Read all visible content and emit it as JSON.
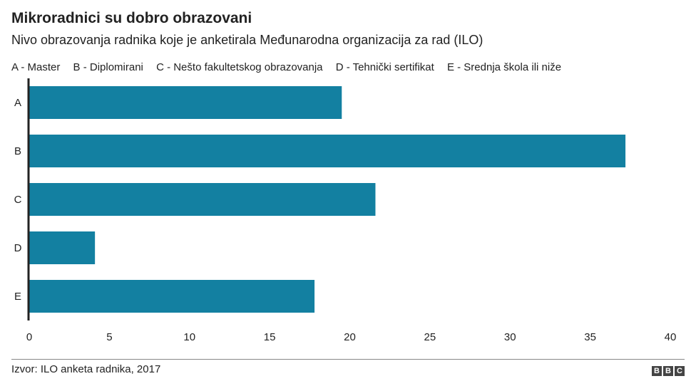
{
  "title": "Mikroradnici su dobro obrazovani",
  "subtitle": "Nivo obrazovanja radnika koje je anketirala Međunarodna organizacija za rad (ILO)",
  "legend": [
    "A - Master",
    "B - Diplomirani",
    "C - Nešto fakultetskog obrazovanja",
    "D - Tehnički sertifikat",
    "E - Srednja škola ili niže"
  ],
  "source": "Izvor: ILO anketa radnika, 2017",
  "brand": [
    "B",
    "B",
    "C"
  ],
  "colors": {
    "bar": "#1380a1",
    "axis": "#222222",
    "text": "#222222"
  },
  "chart_data": {
    "type": "bar",
    "orientation": "horizontal",
    "categories": [
      "A",
      "B",
      "C",
      "D",
      "E"
    ],
    "values": [
      19.5,
      37.2,
      21.6,
      4.1,
      17.8
    ],
    "xlim": [
      0,
      40
    ],
    "xticks": [
      "0",
      "5",
      "10",
      "15",
      "20",
      "25",
      "30",
      "35",
      "40"
    ],
    "xlabel": "",
    "ylabel": "",
    "grid": false
  }
}
